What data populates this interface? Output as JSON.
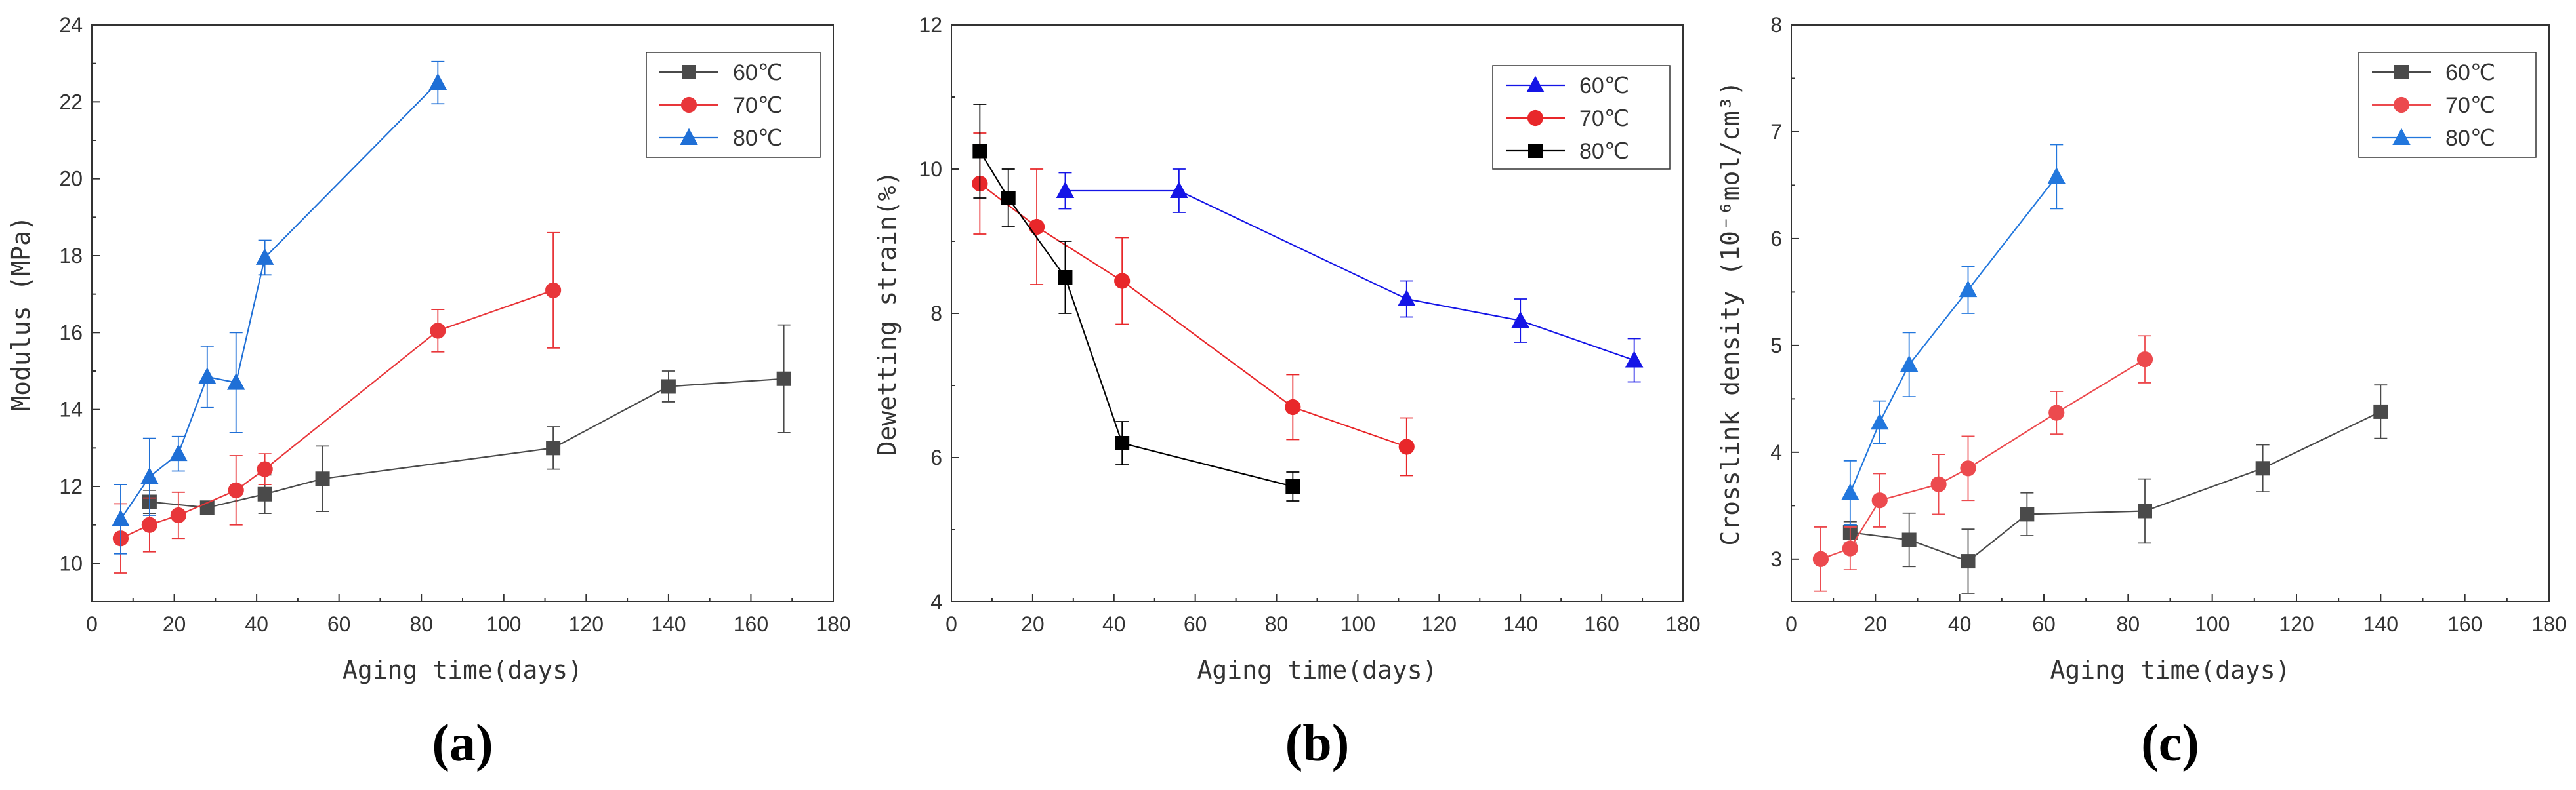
{
  "chart_data": [
    {
      "type": "line",
      "panel_label": "(a)",
      "xlabel": "Aging time(days)",
      "ylabel": "Modulus (MPa)",
      "xlim": [
        0,
        180
      ],
      "ylim": [
        9,
        24
      ],
      "xticks": [
        0,
        20,
        40,
        60,
        80,
        100,
        120,
        140,
        160,
        180
      ],
      "yticks": [
        10,
        12,
        14,
        16,
        18,
        20,
        22,
        24
      ],
      "legend_position": "top-right",
      "series": [
        {
          "name": "60℃",
          "color": "#4a4a4a",
          "marker": "square",
          "x": [
            14,
            28,
            42,
            56,
            112,
            140,
            168
          ],
          "y": [
            11.6,
            11.45,
            11.8,
            12.2,
            13.0,
            14.6,
            14.8
          ],
          "err": [
            0.3,
            0.15,
            0.5,
            0.85,
            0.55,
            0.4,
            1.4
          ]
        },
        {
          "name": "70℃",
          "color": "#e8363a",
          "marker": "circle",
          "x": [
            7,
            14,
            21,
            35,
            42,
            84,
            112
          ],
          "y": [
            10.65,
            11.0,
            11.25,
            11.9,
            12.45,
            16.05,
            17.1
          ],
          "err": [
            0.9,
            0.7,
            0.6,
            0.9,
            0.4,
            0.55,
            1.5
          ]
        },
        {
          "name": "80℃",
          "color": "#1f6fd6",
          "marker": "triangle",
          "x": [
            7,
            14,
            21,
            28,
            35,
            42,
            84
          ],
          "y": [
            11.15,
            12.25,
            12.85,
            14.85,
            14.7,
            17.95,
            22.5
          ],
          "err": [
            0.9,
            1.0,
            0.45,
            0.8,
            1.3,
            0.45,
            0.55
          ]
        }
      ]
    },
    {
      "type": "line",
      "panel_label": "(b)",
      "xlabel": "Aging time(days)",
      "ylabel": "Dewetting strain(%)",
      "xlim": [
        0,
        180
      ],
      "ylim": [
        4,
        12
      ],
      "xticks": [
        0,
        20,
        40,
        60,
        80,
        100,
        120,
        140,
        160,
        180
      ],
      "yticks": [
        4,
        6,
        8,
        10,
        12
      ],
      "legend_position": "top-right",
      "series": [
        {
          "name": "60℃",
          "color": "#1515e6",
          "marker": "triangle",
          "x": [
            28,
            56,
            112,
            140,
            168
          ],
          "y": [
            9.7,
            9.7,
            8.2,
            7.9,
            7.35
          ],
          "err": [
            0.25,
            0.3,
            0.25,
            0.3,
            0.3
          ]
        },
        {
          "name": "70℃",
          "color": "#e8272a",
          "marker": "circle",
          "x": [
            7,
            21,
            42,
            84,
            112
          ],
          "y": [
            9.8,
            9.2,
            8.45,
            6.7,
            6.15
          ],
          "err": [
            0.7,
            0.8,
            0.6,
            0.45,
            0.4
          ]
        },
        {
          "name": "80℃",
          "color": "#000000",
          "marker": "square",
          "x": [
            7,
            14,
            28,
            42,
            84
          ],
          "y": [
            10.25,
            9.6,
            8.5,
            6.2,
            5.6
          ],
          "err": [
            0.65,
            0.4,
            0.5,
            0.3,
            0.2
          ]
        }
      ]
    },
    {
      "type": "line",
      "panel_label": "(c)",
      "xlabel": "Aging time(days)",
      "ylabel": "Crosslink density (10⁻⁶mol/cm³)",
      "xlim": [
        0,
        180
      ],
      "ylim": [
        2.6,
        8
      ],
      "xticks": [
        0,
        20,
        40,
        60,
        80,
        100,
        120,
        140,
        160,
        180
      ],
      "yticks": [
        3,
        4,
        5,
        6,
        7,
        8
      ],
      "legend_position": "top-right",
      "series": [
        {
          "name": "60℃",
          "color": "#4a4a4a",
          "marker": "square",
          "x": [
            14,
            28,
            42,
            56,
            84,
            112,
            140
          ],
          "y": [
            3.25,
            3.18,
            2.98,
            3.42,
            3.45,
            3.85,
            4.38
          ],
          "err": [
            0.1,
            0.25,
            0.3,
            0.2,
            0.3,
            0.22,
            0.25
          ]
        },
        {
          "name": "70℃",
          "color": "#ec4a4e",
          "marker": "circle",
          "x": [
            7,
            14,
            21,
            35,
            42,
            63,
            84
          ],
          "y": [
            3.0,
            3.1,
            3.55,
            3.7,
            3.85,
            4.37,
            4.87
          ],
          "err": [
            0.3,
            0.2,
            0.25,
            0.28,
            0.3,
            0.2,
            0.22
          ]
        },
        {
          "name": "80℃",
          "color": "#2277dd",
          "marker": "triangle",
          "x": [
            14,
            21,
            28,
            42,
            63
          ],
          "y": [
            3.62,
            4.28,
            4.82,
            5.52,
            6.58
          ],
          "err": [
            0.3,
            0.2,
            0.3,
            0.22,
            0.3
          ]
        }
      ]
    }
  ]
}
